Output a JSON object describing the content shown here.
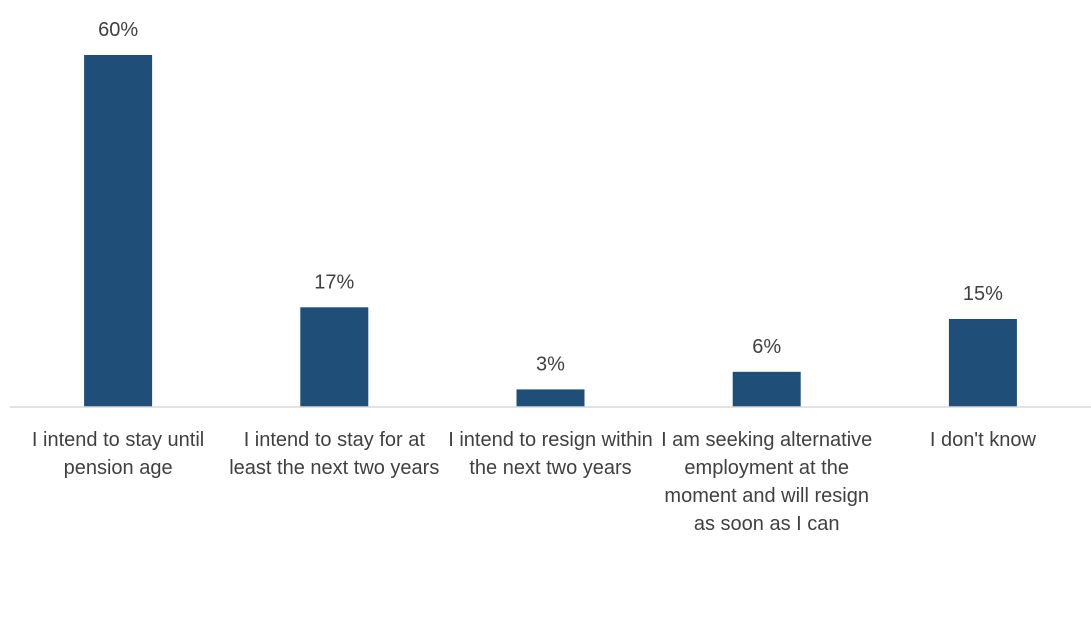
{
  "chart_data": {
    "type": "bar",
    "title": "",
    "xlabel": "",
    "ylabel": "",
    "categories": [
      "I intend to stay until pension age",
      "I intend to stay for at least the next two years",
      "I intend to resign within the next two years",
      "I am seeking alternative employment at the moment and will resign as soon as I can",
      "I don't know"
    ],
    "values": [
      60,
      17,
      3,
      6,
      15
    ],
    "value_labels": [
      "60%",
      "17%",
      "3%",
      "6%",
      "15%"
    ],
    "unit": "%",
    "ylim": [
      0,
      60
    ],
    "grid": false,
    "legend": "none",
    "colors": {
      "bar": "#1F4E79",
      "axis": "#D9D9D9",
      "text": "#404040"
    }
  }
}
